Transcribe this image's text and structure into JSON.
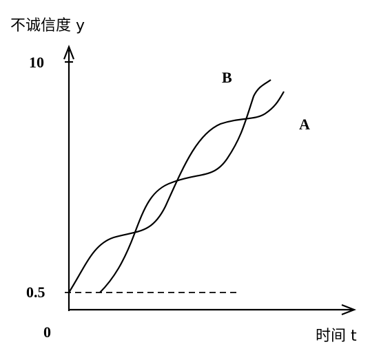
{
  "axes": {
    "y_label": "不诚信度 y",
    "x_label": "时间 t",
    "origin": "0",
    "y_ticks": [
      "10",
      "0.5"
    ]
  },
  "curves": {
    "b_label": "B",
    "a_label": "A"
  }
}
